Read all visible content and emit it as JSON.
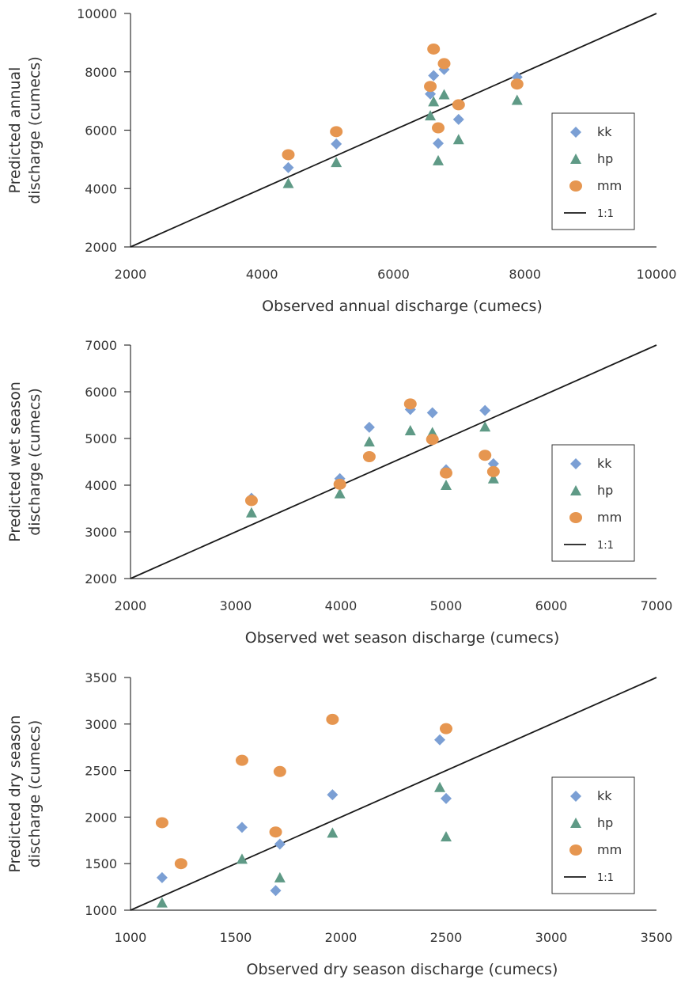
{
  "colors": {
    "kk": "#7b9fd4",
    "hp": "#5f9a86",
    "mm": "#e69650",
    "line": "#1a1a1a",
    "axis": "#333333"
  },
  "chart_data": [
    {
      "type": "scatter",
      "title": "",
      "xlabel": "Observed annual discharge (cumecs)",
      "ylabel_lines": [
        "Predicted annual",
        "discharge (cumecs)"
      ],
      "xlim": [
        2000,
        10000
      ],
      "ylim": [
        2000,
        10000
      ],
      "xticks": [
        "2000",
        "4000",
        "6000",
        "8000",
        "10000"
      ],
      "yticks": [
        "2000",
        "4000",
        "6000",
        "8000",
        "10000"
      ],
      "grid": false,
      "legend": "right",
      "series": [
        {
          "name": "kk",
          "marker": "diamond",
          "points": [
            [
              4400,
              4720
            ],
            [
              5130,
              5530
            ],
            [
              6560,
              7240
            ],
            [
              6610,
              7870
            ],
            [
              6680,
              5550
            ],
            [
              6770,
              8080
            ],
            [
              6990,
              6370
            ],
            [
              7880,
              7820
            ]
          ]
        },
        {
          "name": "hp",
          "marker": "triangle",
          "points": [
            [
              4400,
              4180
            ],
            [
              5130,
              4900
            ],
            [
              6560,
              6500
            ],
            [
              6610,
              6980
            ],
            [
              6680,
              4960
            ],
            [
              6770,
              7220
            ],
            [
              6990,
              5680
            ],
            [
              7880,
              7030
            ]
          ]
        },
        {
          "name": "mm",
          "marker": "circle",
          "points": [
            [
              4400,
              5160
            ],
            [
              5130,
              5950
            ],
            [
              6560,
              7500
            ],
            [
              6610,
              8780
            ],
            [
              6680,
              6080
            ],
            [
              6770,
              8280
            ],
            [
              6990,
              6870
            ],
            [
              7880,
              7580
            ]
          ]
        },
        {
          "name": "1:1",
          "marker": "line",
          "points": [
            [
              2000,
              2000
            ],
            [
              10000,
              10000
            ]
          ]
        }
      ]
    },
    {
      "type": "scatter",
      "title": "",
      "xlabel": "Observed wet season discharge (cumecs)",
      "ylabel_lines": [
        "Predicted wet season",
        "discharge (cumecs)"
      ],
      "xlim": [
        2000,
        7000
      ],
      "ylim": [
        2000,
        7000
      ],
      "xticks": [
        "2000",
        "3000",
        "4000",
        "5000",
        "6000",
        "7000"
      ],
      "yticks": [
        "2000",
        "3000",
        "4000",
        "5000",
        "6000",
        "7000"
      ],
      "grid": false,
      "legend": "right",
      "series": [
        {
          "name": "kk",
          "marker": "diamond",
          "points": [
            [
              3150,
              3720
            ],
            [
              3990,
              4140
            ],
            [
              4270,
              5240
            ],
            [
              4660,
              5620
            ],
            [
              4870,
              5550
            ],
            [
              5000,
              4330
            ],
            [
              5370,
              5600
            ],
            [
              5450,
              4460
            ]
          ]
        },
        {
          "name": "hp",
          "marker": "triangle",
          "points": [
            [
              3150,
              3410
            ],
            [
              3990,
              3820
            ],
            [
              4270,
              4930
            ],
            [
              4660,
              5170
            ],
            [
              4870,
              5130
            ],
            [
              5000,
              4000
            ],
            [
              5370,
              5250
            ],
            [
              5450,
              4140
            ]
          ]
        },
        {
          "name": "mm",
          "marker": "circle",
          "points": [
            [
              3150,
              3670
            ],
            [
              3990,
              4020
            ],
            [
              4270,
              4610
            ],
            [
              4660,
              5740
            ],
            [
              4870,
              4980
            ],
            [
              5000,
              4260
            ],
            [
              5370,
              4640
            ],
            [
              5450,
              4290
            ]
          ]
        },
        {
          "name": "1:1",
          "marker": "line",
          "points": [
            [
              2000,
              2000
            ],
            [
              7000,
              7000
            ]
          ]
        }
      ]
    },
    {
      "type": "scatter",
      "title": "",
      "xlabel": "Observed dry season discharge (cumecs)",
      "ylabel_lines": [
        "Predicted dry season",
        "discharge (cumecs)"
      ],
      "xlim": [
        1000,
        3500
      ],
      "ylim": [
        1000,
        3500
      ],
      "xticks": [
        "1000",
        "1500",
        "2000",
        "2500",
        "3000",
        "3500"
      ],
      "yticks": [
        "1000",
        "1500",
        "2000",
        "2500",
        "3000",
        "3500"
      ],
      "grid": false,
      "legend": "right",
      "series": [
        {
          "name": "kk",
          "marker": "diamond",
          "points": [
            [
              1150,
              1350
            ],
            [
              1530,
              1890
            ],
            [
              1690,
              1210
            ],
            [
              1710,
              1710
            ],
            [
              1960,
              2240
            ],
            [
              2470,
              2830
            ],
            [
              2500,
              2200
            ]
          ]
        },
        {
          "name": "hp",
          "marker": "triangle",
          "points": [
            [
              1150,
              1080
            ],
            [
              1530,
              1550
            ],
            [
              1710,
              1350
            ],
            [
              1960,
              1830
            ],
            [
              2470,
              2320
            ],
            [
              2500,
              1790
            ]
          ]
        },
        {
          "name": "mm",
          "marker": "circle",
          "points": [
            [
              1150,
              1940
            ],
            [
              1240,
              1500
            ],
            [
              1530,
              2610
            ],
            [
              1690,
              1840
            ],
            [
              1710,
              2490
            ],
            [
              1960,
              3050
            ],
            [
              2500,
              2950
            ]
          ]
        },
        {
          "name": "1:1",
          "marker": "line",
          "points": [
            [
              1000,
              1000
            ],
            [
              3500,
              3500
            ]
          ]
        }
      ]
    }
  ]
}
